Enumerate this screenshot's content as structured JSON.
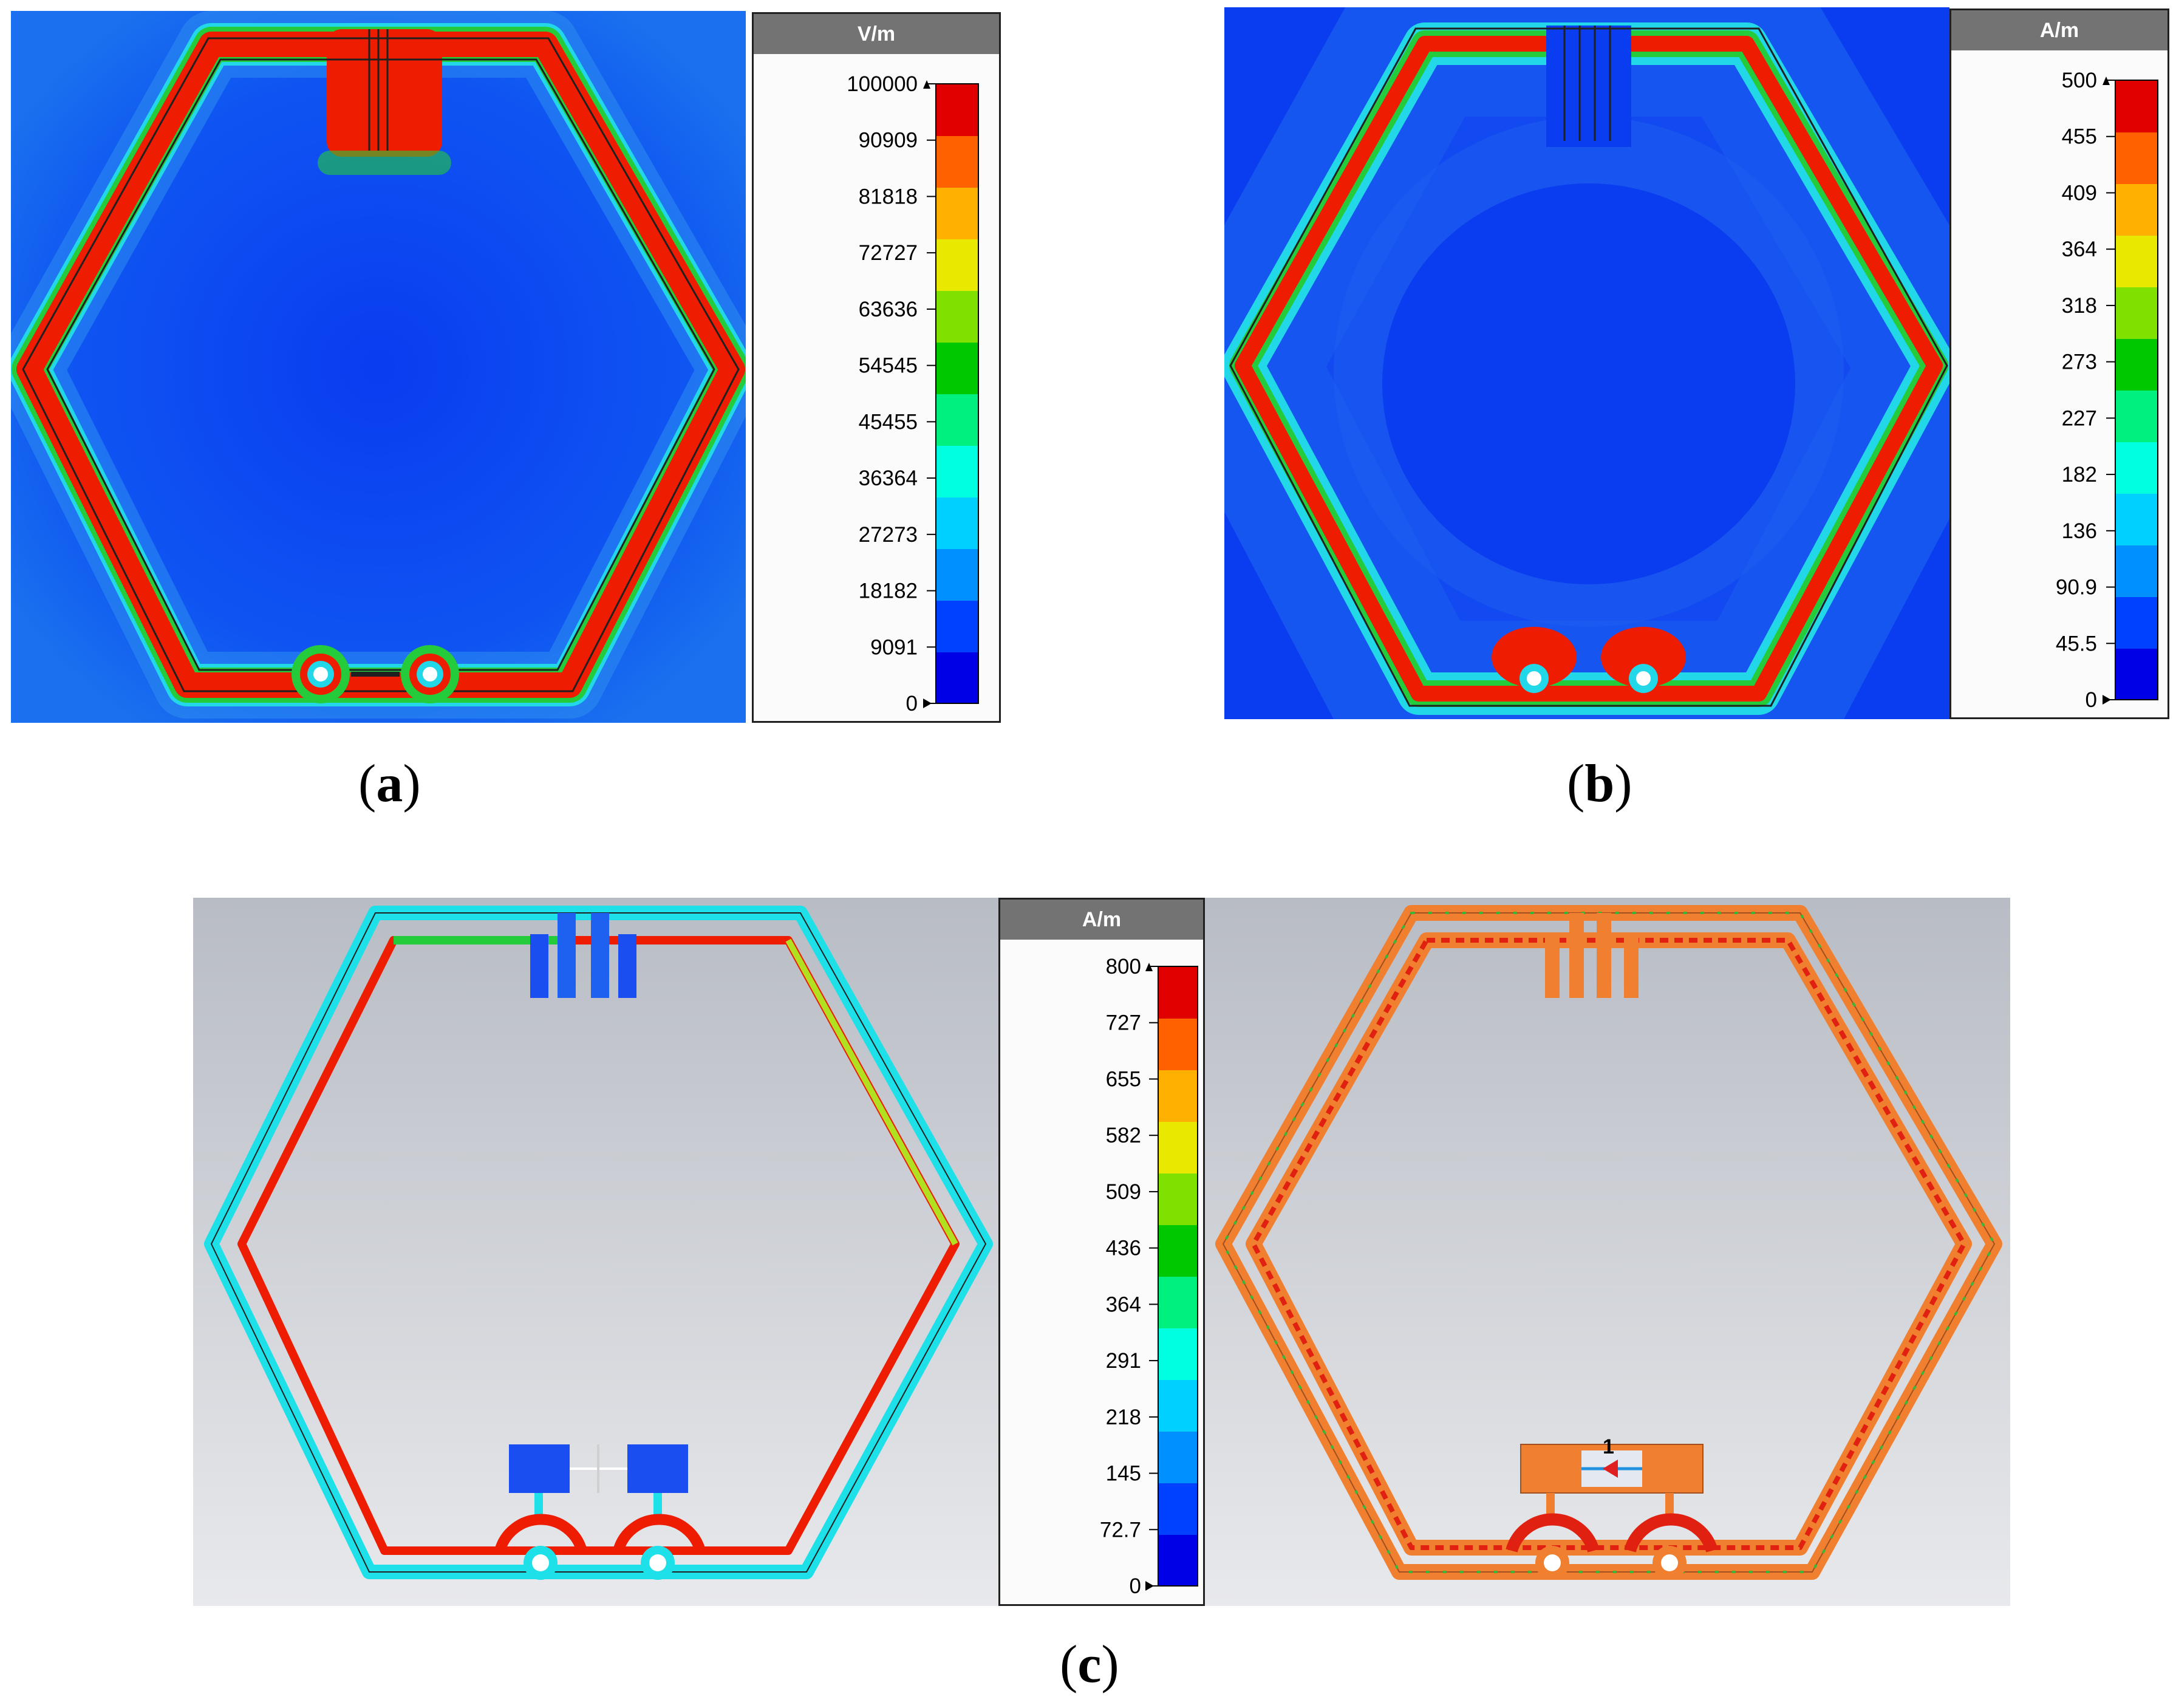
{
  "panels": [
    {
      "id": "a",
      "caption_letter": "a",
      "unit": "V/m",
      "ticks": [
        "100000",
        "90909",
        "81818",
        "72727",
        "63636",
        "54545",
        "45455",
        "36364",
        "27273",
        "18182",
        "9091",
        "0"
      ]
    },
    {
      "id": "b",
      "caption_letter": "b",
      "unit": "A/m",
      "ticks": [
        "500",
        "455",
        "409",
        "364",
        "318",
        "273",
        "227",
        "182",
        "136",
        "90.9",
        "45.5",
        "0"
      ]
    },
    {
      "id": "c",
      "caption_letter": "c",
      "unit": "A/m",
      "ticks": [
        "800",
        "727",
        "655",
        "582",
        "509",
        "436",
        "364",
        "291",
        "218",
        "145",
        "72.7",
        "0"
      ],
      "port_label": "1"
    }
  ],
  "colors": {
    "field_blue": "#0a3cf0",
    "field_red": "#ee1c00",
    "field_green": "#22cc22",
    "field_cyan": "#1ee0e8",
    "sim_grey": "#c9ccd1",
    "copper": "#f08030"
  },
  "colormap": [
    "#0000e6",
    "#0040ff",
    "#0090ff",
    "#00d0ff",
    "#00ffe0",
    "#00f080",
    "#00c800",
    "#80e000",
    "#e8e800",
    "#ffb000",
    "#ff6000",
    "#e00000"
  ]
}
